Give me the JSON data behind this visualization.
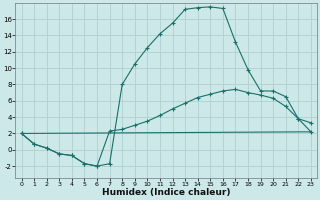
{
  "xlabel": "Humidex (Indice chaleur)",
  "bg_color": "#cce8e8",
  "grid_color": "#b0d0d0",
  "line_color": "#1a7068",
  "xlim": [
    -0.5,
    23.5
  ],
  "ylim": [
    -3.5,
    18.0
  ],
  "xticks": [
    0,
    1,
    2,
    3,
    4,
    5,
    6,
    7,
    8,
    9,
    10,
    11,
    12,
    13,
    14,
    15,
    16,
    17,
    18,
    19,
    20,
    21,
    22,
    23
  ],
  "yticks": [
    -2,
    0,
    2,
    4,
    6,
    8,
    10,
    12,
    14,
    16
  ],
  "line1_x": [
    0,
    1,
    2,
    3,
    4,
    5,
    6,
    7,
    8,
    9,
    10,
    11,
    12,
    13,
    14,
    15,
    16,
    17,
    18,
    19,
    20,
    21,
    22,
    23
  ],
  "line1_y": [
    2.0,
    0.7,
    0.2,
    -0.5,
    -0.7,
    -1.7,
    -2.0,
    -1.7,
    8.0,
    10.5,
    12.5,
    14.2,
    15.5,
    17.2,
    17.4,
    17.5,
    17.3,
    13.2,
    9.8,
    7.2,
    7.2,
    6.5,
    3.8,
    2.2
  ],
  "line2_x": [
    0,
    1,
    2,
    3,
    4,
    5,
    6,
    7,
    8,
    9,
    10,
    11,
    12,
    13,
    14,
    15,
    16,
    17,
    18,
    19,
    20,
    21,
    22,
    23
  ],
  "line2_y": [
    2.0,
    0.7,
    0.2,
    -0.5,
    -0.7,
    -1.7,
    -2.0,
    2.3,
    2.5,
    3.0,
    3.5,
    4.2,
    5.0,
    5.7,
    6.4,
    6.8,
    7.2,
    7.4,
    7.0,
    6.7,
    6.3,
    5.3,
    3.8,
    3.3
  ],
  "line3_x": [
    0,
    23
  ],
  "line3_y": [
    2.0,
    2.2
  ]
}
